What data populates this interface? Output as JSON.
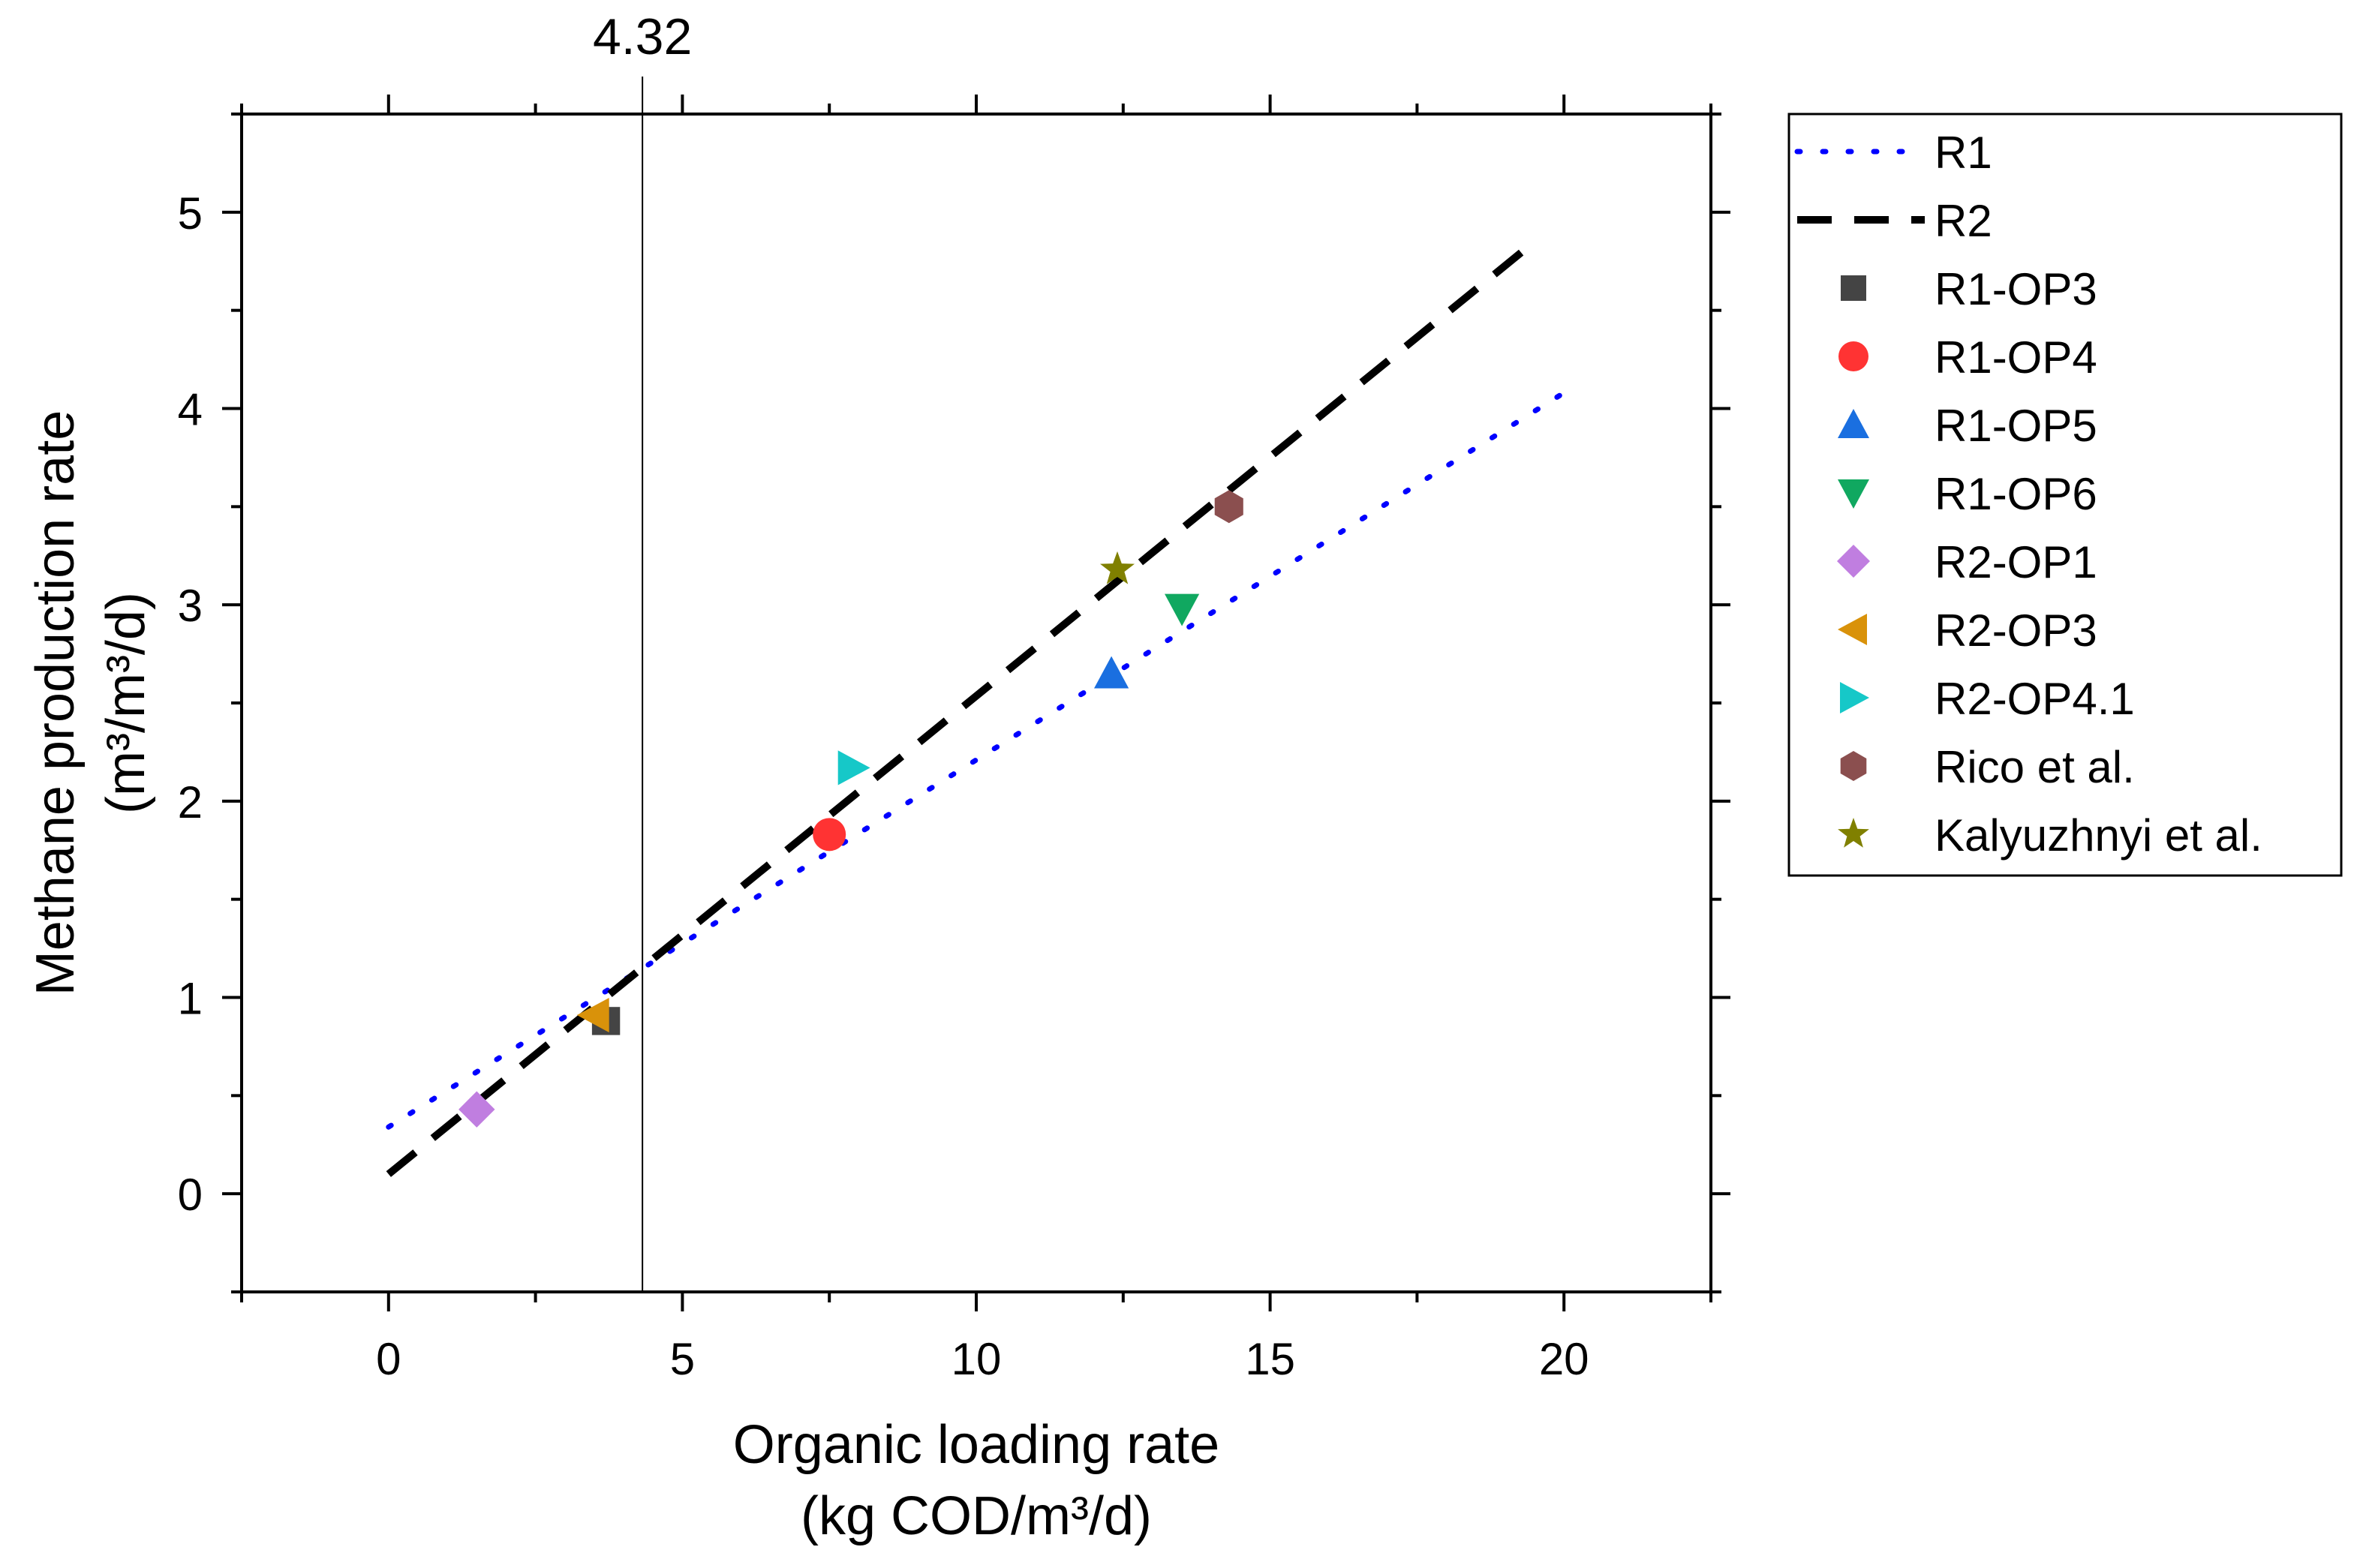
{
  "chart_data": {
    "type": "scatter",
    "xlabel_line1": "Organic loading rate",
    "xlabel_line2": "(kg COD/m³/d)",
    "ylabel_line1": "Methane production rate",
    "ylabel_line2": "(m³/m³/d)",
    "xlim": [
      -2.5,
      22.5
    ],
    "ylim": [
      -0.5,
      5.5
    ],
    "x_ticks": [
      0,
      5,
      10,
      15,
      20
    ],
    "x_tick_labels": [
      "0",
      "5",
      "10",
      "15",
      "20"
    ],
    "y_ticks": [
      0,
      1,
      2,
      3,
      4,
      5
    ],
    "y_tick_labels": [
      "0",
      "1",
      "2",
      "3",
      "4",
      "5"
    ],
    "x_minor_ticks": [
      -2.5,
      2.5,
      7.5,
      12.5,
      17.5,
      22.5
    ],
    "y_minor_ticks": [
      -0.5,
      0.5,
      1.5,
      2.5,
      3.5,
      4.5,
      5.5
    ],
    "vline": {
      "x": 4.32,
      "label": "4.32"
    },
    "lines": [
      {
        "name": "R1",
        "style": "dotted",
        "color": "#0000ff",
        "x": [
          0,
          20
        ],
        "y": [
          0.34,
          4.08
        ]
      },
      {
        "name": "R2",
        "style": "dashed",
        "color": "#000000",
        "x": [
          0,
          19.5
        ],
        "y": [
          0.1,
          4.85
        ]
      }
    ],
    "series": [
      {
        "name": "R1-OP3",
        "marker": "square",
        "color": "#444444",
        "points": [
          [
            3.7,
            0.88
          ]
        ]
      },
      {
        "name": "R1-OP4",
        "marker": "circle",
        "color": "#ff3333",
        "points": [
          [
            7.5,
            1.83
          ]
        ]
      },
      {
        "name": "R1-OP5",
        "marker": "triangle-up",
        "color": "#1a6fe0",
        "points": [
          [
            12.3,
            2.65
          ]
        ]
      },
      {
        "name": "R1-OP6",
        "marker": "triangle-down",
        "color": "#10a860",
        "points": [
          [
            13.5,
            2.98
          ]
        ]
      },
      {
        "name": "R2-OP1",
        "marker": "diamond",
        "color": "#c07ee0",
        "points": [
          [
            1.5,
            0.43
          ]
        ]
      },
      {
        "name": "R2-OP3",
        "marker": "triangle-left",
        "color": "#d9920a",
        "points": [
          [
            3.5,
            0.91
          ]
        ]
      },
      {
        "name": "R2-OP4.1",
        "marker": "triangle-right",
        "color": "#16c8c8",
        "points": [
          [
            7.9,
            2.17
          ]
        ]
      },
      {
        "name": "Rico et al.",
        "marker": "hexagon",
        "color": "#8b4f4f",
        "points": [
          [
            14.3,
            3.5
          ]
        ]
      },
      {
        "name": "Kalyuzhnyi et al.",
        "marker": "star",
        "color": "#808000",
        "points": [
          [
            12.4,
            3.18
          ]
        ]
      }
    ],
    "legend_position": "right"
  }
}
